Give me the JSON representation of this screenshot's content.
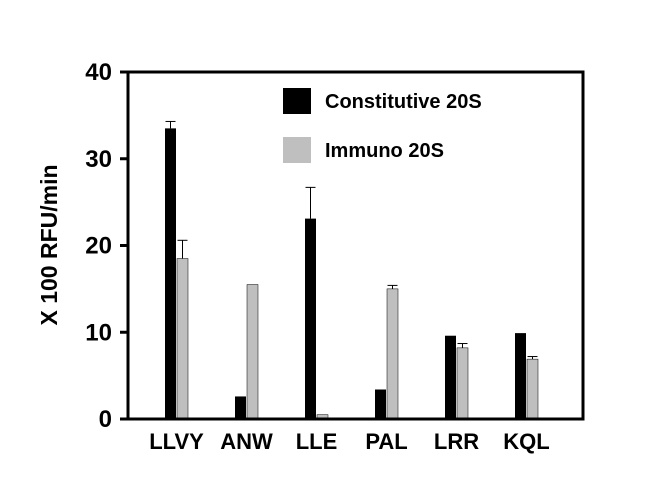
{
  "chart_data": {
    "type": "bar",
    "ylabel": "X 100 RFU/min",
    "xlabel": "",
    "ylim": [
      0,
      40
    ],
    "yticks": [
      0,
      10,
      20,
      30,
      40
    ],
    "categories": [
      "LLVY",
      "ANW",
      "LLE",
      "PAL",
      "LRR",
      "KQL"
    ],
    "series": [
      {
        "name": "Constitutive 20S",
        "color": "#000000",
        "values": [
          33.5,
          2.6,
          23.1,
          3.4,
          9.6,
          9.9
        ],
        "errors": [
          0.8,
          0,
          3.6,
          0,
          0,
          0
        ]
      },
      {
        "name": "Immuno 20S",
        "color": "#bfbfbf",
        "values": [
          18.5,
          15.5,
          0.5,
          15.0,
          8.2,
          6.9
        ],
        "errors": [
          2.1,
          0,
          0,
          0.4,
          0.5,
          0.3
        ]
      }
    ],
    "legend": "top-right",
    "grid": false
  }
}
